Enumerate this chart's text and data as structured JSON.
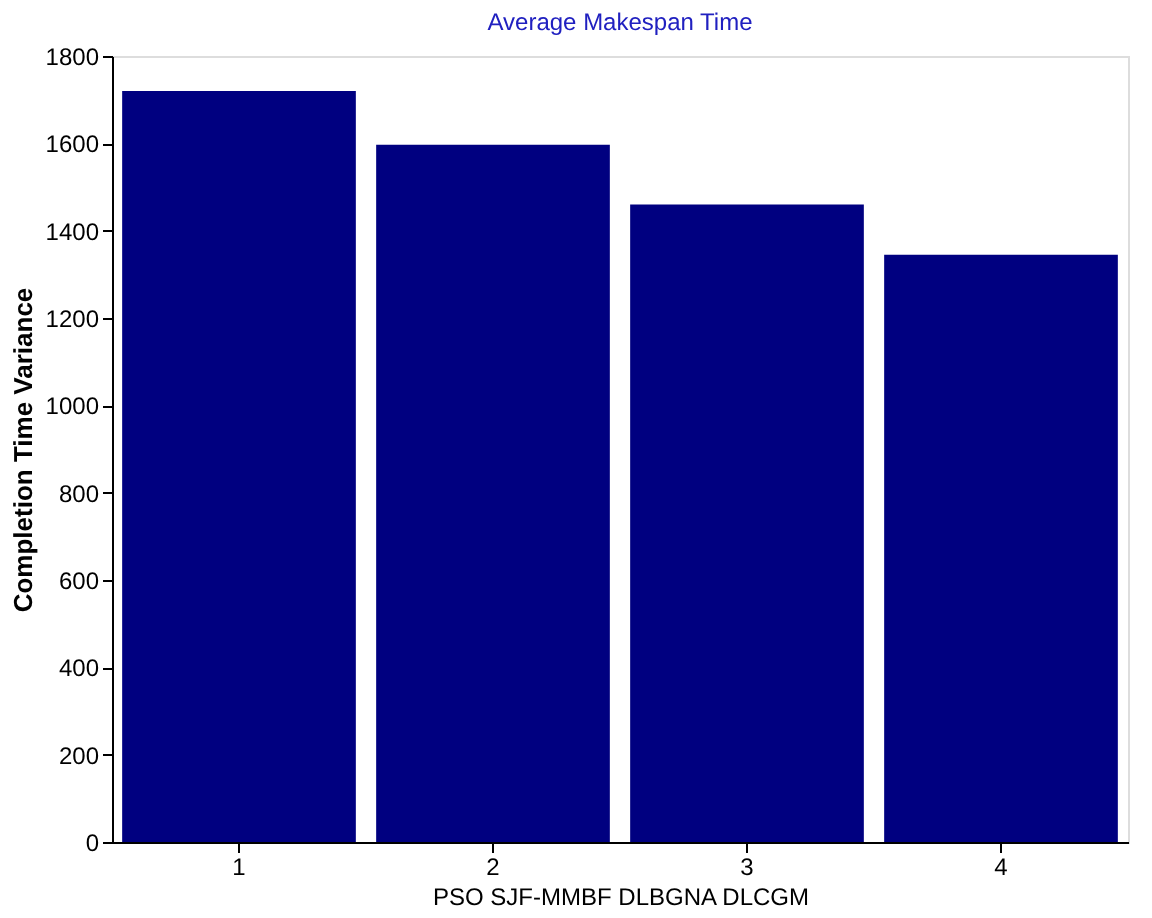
{
  "chart_data": {
    "type": "bar",
    "title": "Average Makespan Time",
    "xlabel": "PSO    SJF-MMBF    DLBGNA    DLCGM",
    "ylabel": "Completion Time Variance",
    "categories": [
      "1",
      "2",
      "3",
      "4"
    ],
    "values": [
      1720,
      1597,
      1460,
      1345
    ],
    "color": "#000080",
    "ylim": [
      0,
      1800
    ],
    "yticks": [
      0,
      200,
      400,
      600,
      800,
      1000,
      1200,
      1400,
      1600,
      1800
    ],
    "grid": false
  }
}
